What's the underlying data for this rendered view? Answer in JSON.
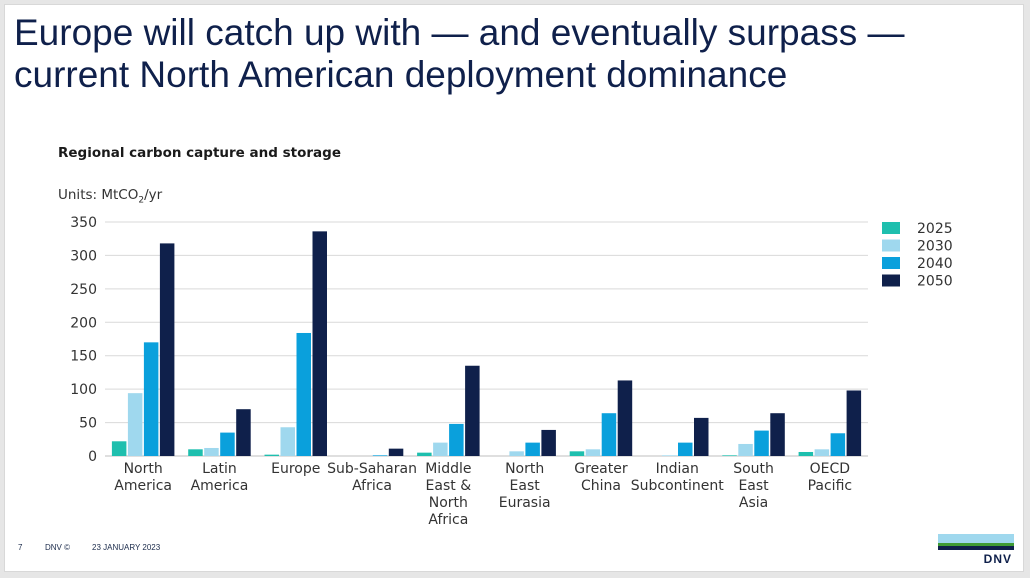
{
  "slide": {
    "title_line1": "Europe will catch up with — and eventually surpass —",
    "title_line2": "current North American deployment dominance",
    "chart_title": "Regional carbon capture and storage",
    "units_prefix": "Units: MtCO",
    "units_sub": "2",
    "units_suffix": "/yr",
    "footer": {
      "page_number": "7",
      "brand": "DNV ©",
      "date": "23 JANUARY 2023"
    },
    "logo_text": "DNV"
  },
  "chart_data": {
    "type": "bar",
    "title": "Regional carbon capture and storage",
    "ylabel": "Units: MtCO2/yr",
    "xlabel": "",
    "ylim": [
      0,
      350
    ],
    "yticks": [
      0,
      50,
      100,
      150,
      200,
      250,
      300,
      350
    ],
    "grid": true,
    "legend_position": "top-right",
    "categories": [
      [
        "North",
        "America"
      ],
      [
        "Latin",
        "America"
      ],
      [
        "Europe"
      ],
      [
        "Sub-Saharan",
        "Africa"
      ],
      [
        "Middle",
        "East &",
        "North",
        "Africa"
      ],
      [
        "North",
        "East",
        "Eurasia"
      ],
      [
        "Greater",
        "China"
      ],
      [
        "Indian",
        "Subcontinent"
      ],
      [
        "South",
        "East",
        "Asia"
      ],
      [
        "OECD",
        "Pacific"
      ]
    ],
    "series": [
      {
        "name": "2025",
        "color": "#1ebfae",
        "values": [
          22,
          10,
          2,
          0,
          5,
          0,
          7,
          0,
          1,
          6
        ]
      },
      {
        "name": "2030",
        "color": "#9fd8ee",
        "values": [
          94,
          12,
          43,
          0,
          20,
          7,
          10,
          1,
          18,
          10
        ]
      },
      {
        "name": "2040",
        "color": "#0aa0dc",
        "values": [
          170,
          35,
          184,
          1,
          48,
          20,
          64,
          20,
          38,
          34
        ]
      },
      {
        "name": "2050",
        "color": "#0f204b",
        "values": [
          318,
          70,
          336,
          11,
          135,
          39,
          113,
          57,
          64,
          98
        ]
      }
    ]
  }
}
